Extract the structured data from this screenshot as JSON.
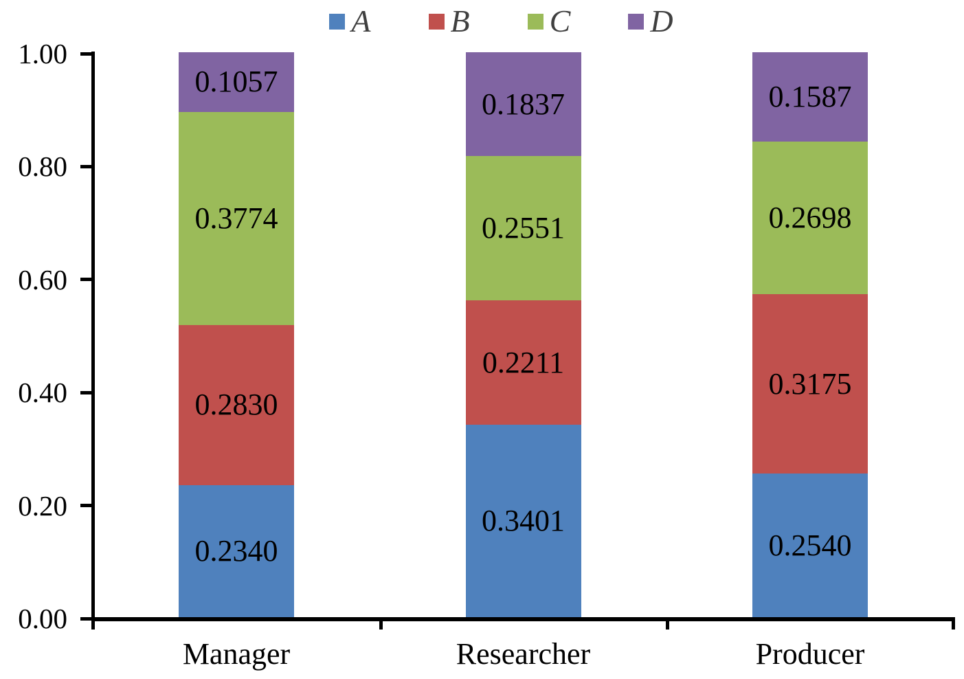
{
  "chart": {
    "background": "#ffffff",
    "axis_color": "#000000",
    "data_label_color": "#000000",
    "tick_label_color": "#000000",
    "legend_text_color": "#404040"
  },
  "chart_data": {
    "type": "bar",
    "stacked": true,
    "title": "",
    "xlabel": "",
    "ylabel": "",
    "categories": [
      "Manager",
      "Researcher",
      "Producer"
    ],
    "series": [
      {
        "name": "A",
        "color": "#4F81BD",
        "values": [
          0.234,
          0.3401,
          0.254
        ],
        "labels": [
          "0.2340",
          "0.3401",
          "0.2540"
        ]
      },
      {
        "name": "B",
        "color": "#C0504D",
        "values": [
          0.283,
          0.2211,
          0.3175
        ],
        "labels": [
          "0.2830",
          "0.2211",
          "0.3175"
        ]
      },
      {
        "name": "C",
        "color": "#9BBB59",
        "values": [
          0.3774,
          0.2551,
          0.2698
        ],
        "labels": [
          "0.3774",
          "0.2551",
          "0.2698"
        ]
      },
      {
        "name": "D",
        "color": "#8064A2",
        "values": [
          0.1057,
          0.1837,
          0.1587
        ],
        "labels": [
          "0.1057",
          "0.1837",
          "0.1587"
        ]
      }
    ],
    "ylim": [
      0,
      1
    ],
    "yticks": [
      "0.00",
      "0.20",
      "0.40",
      "0.60",
      "0.80",
      "1.00"
    ],
    "legend_position": "top",
    "grid": false
  }
}
